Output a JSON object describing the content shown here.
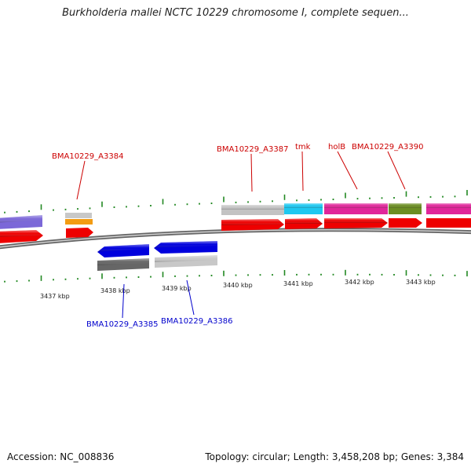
{
  "title": "Burkholderia mallei NCTC 10229 chromosome I, complete sequen...",
  "footer": {
    "accession": "Accession: NC_008836",
    "summary": "Topology: circular; Length: 3,458,208 bp; Genes: 3,384"
  },
  "axis_ticks": [
    "3437 kbp",
    "3438 kbp",
    "3439 kbp",
    "3440 kbp",
    "3441 kbp",
    "3442 kbp",
    "3443 kbp"
  ],
  "gene_labels_top": [
    "BMA10229_A3384",
    "BMA10229_A3387",
    "tmk",
    "holB",
    "BMA10229_A3390"
  ],
  "gene_labels_bottom": [
    "BMA10229_A3385",
    "BMA10229_A3386"
  ],
  "colors": {
    "label_forward": "#cc0000",
    "label_reverse": "#0000cc",
    "cds": "#ee0000",
    "cds_reverse": "#0000dd",
    "backbone": "#888888",
    "tick": "#228822",
    "purple_feature": "#7b68d8",
    "grey_feature": "#c8c8c8",
    "dark_grey_feature": "#666666",
    "orange_feature": "#f39c12",
    "cyan_feature": "#1ec8f0",
    "magenta_feature": "#e0279a",
    "olive_feature": "#6b8e23"
  }
}
